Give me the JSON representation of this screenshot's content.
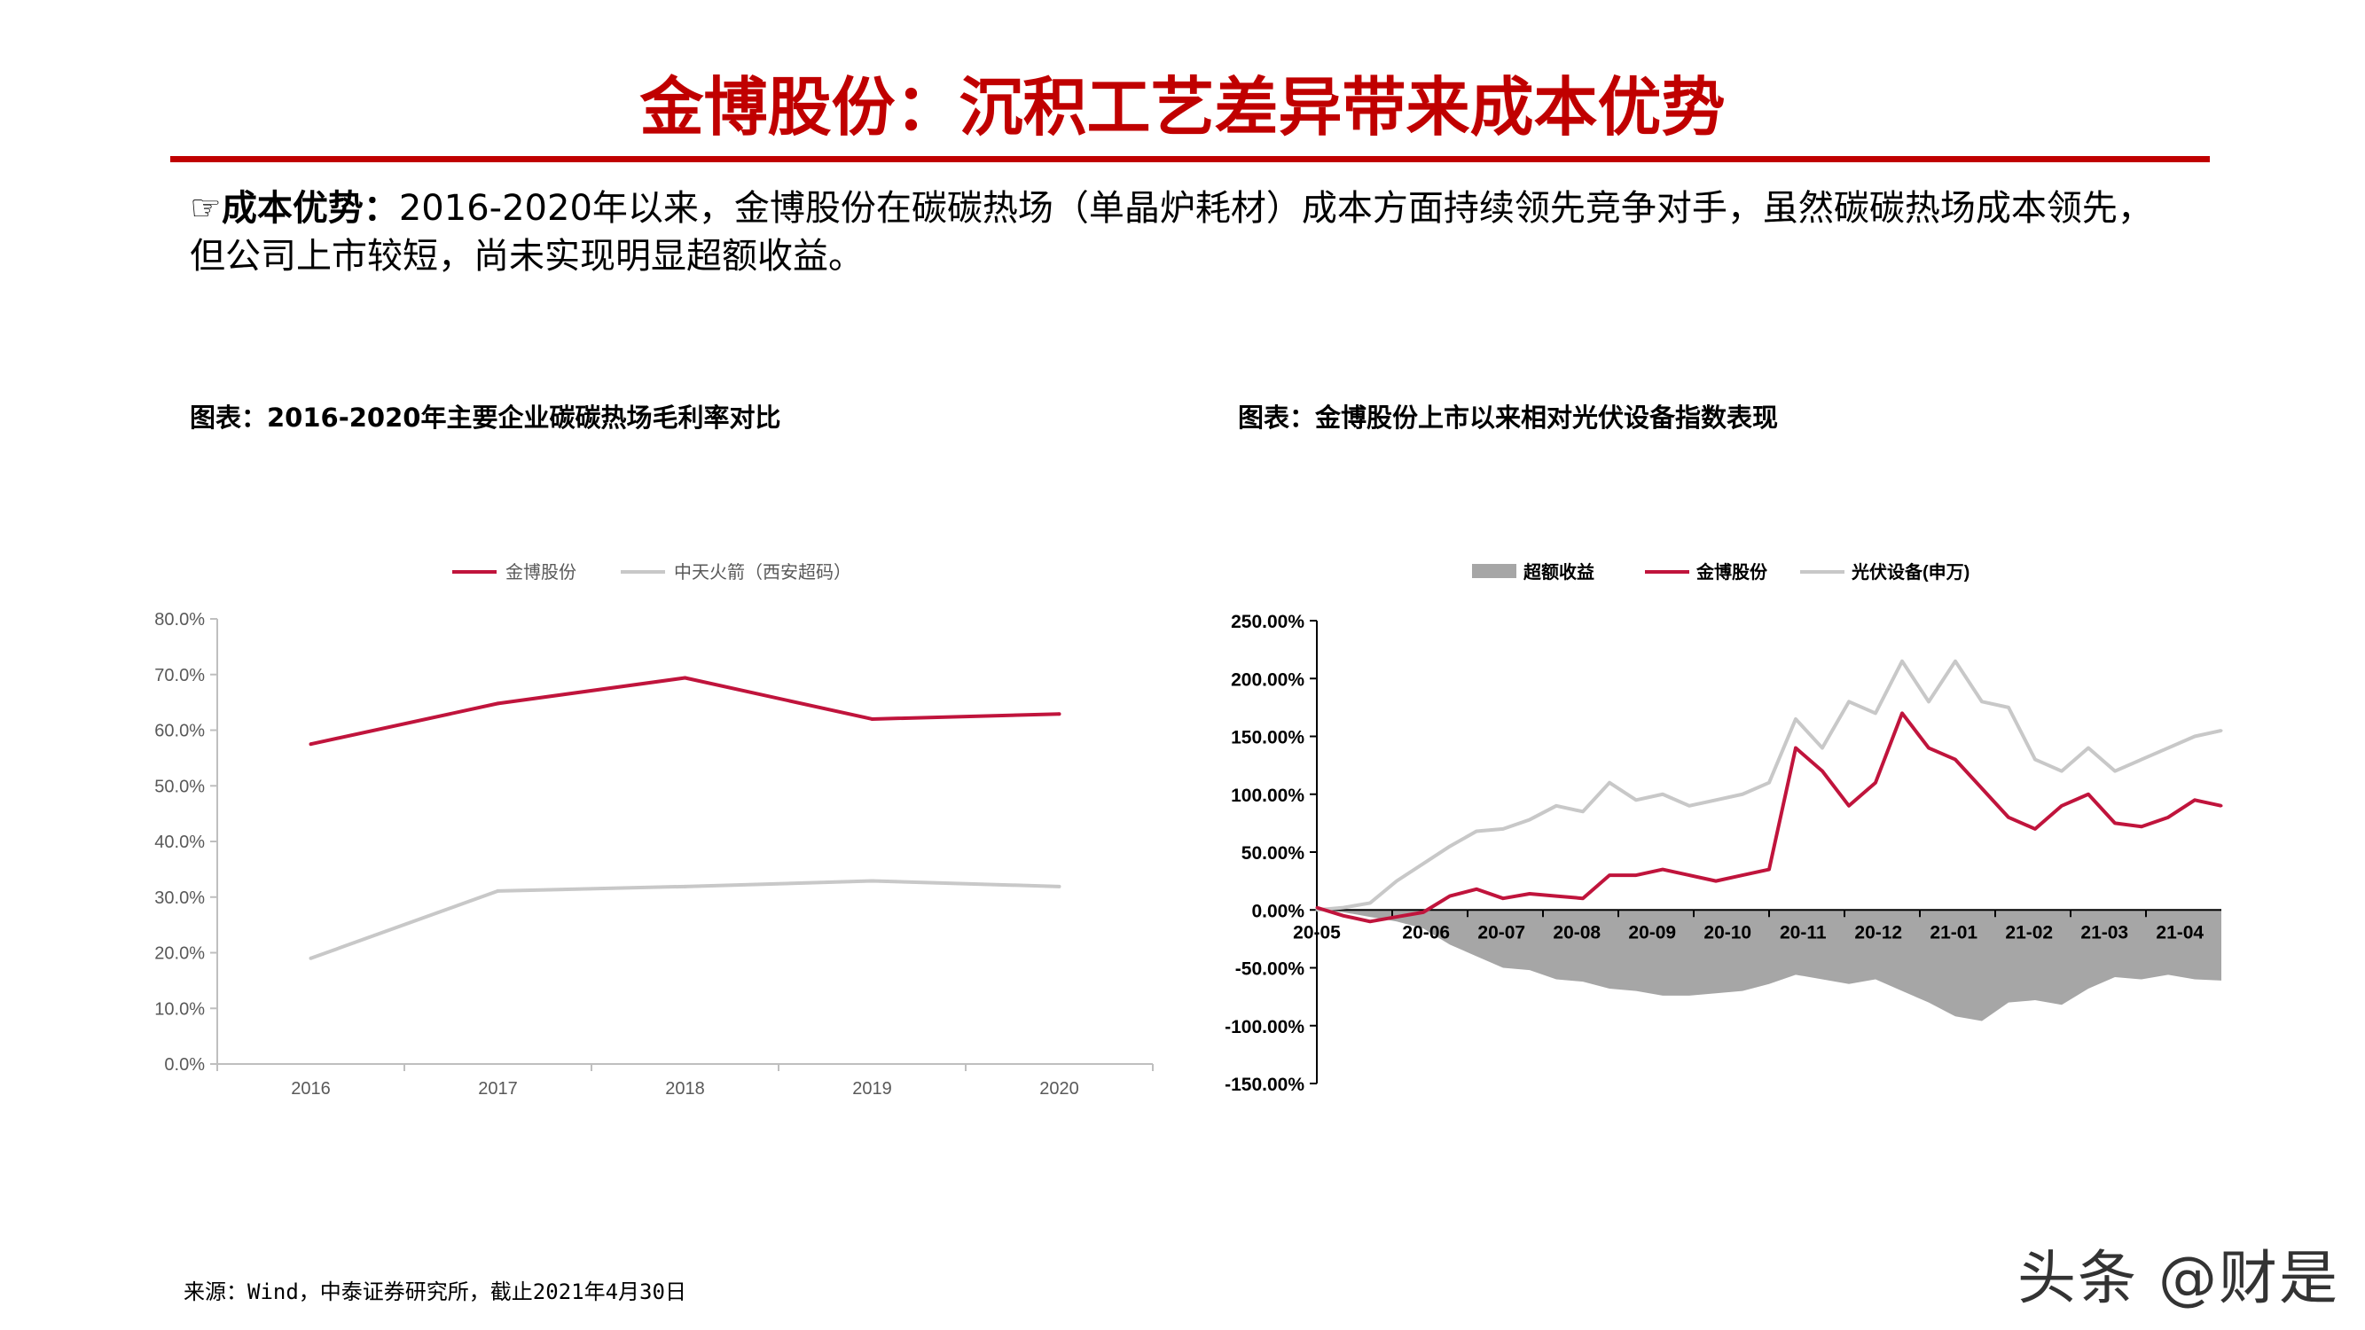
{
  "page": {
    "title": "金博股份：沉积工艺差异带来成本优势",
    "intro_icon": "☞",
    "intro_lead": "成本优势：",
    "intro_text": "2016-2020年以来，金博股份在碳碳热场（单晶炉耗材）成本方面持续领先竞争对手，虽然碳碳热场成本领先，但公司上市较短，尚未实现明显超额收益。",
    "source": "来源：Wind，中泰证券研究所，截止2021年4月30日",
    "watermark": "头条 @财是",
    "accent_color": "#c00000"
  },
  "chart_data": [
    {
      "type": "line",
      "title": "图表：2016-2020年主要企业碳碳热场毛利率对比",
      "categories": [
        "2016",
        "2017",
        "2018",
        "2019",
        "2020"
      ],
      "ylim": [
        0,
        0.8
      ],
      "yticks": [
        "0.0%",
        "10.0%",
        "20.0%",
        "30.0%",
        "40.0%",
        "50.0%",
        "60.0%",
        "70.0%",
        "80.0%"
      ],
      "legend_position": "top",
      "grid": false,
      "series": [
        {
          "name": "金博股份",
          "color": "#c0143c",
          "values": [
            0.575,
            0.648,
            0.694,
            0.62,
            0.629
          ]
        },
        {
          "name": "中天火箭（西安超码）",
          "color": "#c8c8c8",
          "values": [
            0.19,
            0.311,
            0.319,
            0.329,
            0.319
          ]
        }
      ]
    },
    {
      "type": "line",
      "title": "图表：金博股份上市以来相对光伏设备指数表现",
      "x_ticks": [
        "20-05",
        "20-06",
        "20-07",
        "20-08",
        "20-09",
        "20-10",
        "20-11",
        "20-12",
        "21-01",
        "21-02",
        "21-03",
        "21-04"
      ],
      "ylim": [
        -1.5,
        2.5
      ],
      "yticks": [
        "-150.00%",
        "-100.00%",
        "-50.00%",
        "0.00%",
        "50.00%",
        "100.00%",
        "150.00%",
        "200.00%",
        "250.00%"
      ],
      "legend_position": "top",
      "grid": false,
      "series": [
        {
          "name": "超额收益",
          "type": "area",
          "color": "#a6a6a6",
          "values": [
            0.0,
            -0.02,
            -0.06,
            -0.1,
            -0.16,
            -0.3,
            -0.4,
            -0.5,
            -0.52,
            -0.6,
            -0.62,
            -0.68,
            -0.7,
            -0.74,
            -0.74,
            -0.72,
            -0.7,
            -0.64,
            -0.56,
            -0.6,
            -0.64,
            -0.6,
            -0.7,
            -0.8,
            -0.92,
            -0.96,
            -0.8,
            -0.78,
            -0.82,
            -0.68,
            -0.58,
            -0.6,
            -0.56,
            -0.6,
            -0.61
          ]
        },
        {
          "name": "金博股份",
          "color": "#c0143c",
          "values": [
            0.02,
            -0.05,
            -0.1,
            -0.06,
            -0.02,
            0.12,
            0.18,
            0.1,
            0.14,
            0.12,
            0.1,
            0.3,
            0.3,
            0.35,
            0.3,
            0.25,
            0.3,
            0.35,
            1.4,
            1.2,
            0.9,
            1.1,
            1.7,
            1.4,
            1.3,
            1.05,
            0.8,
            0.7,
            0.9,
            1.0,
            0.75,
            0.72,
            0.8,
            0.95,
            0.9
          ]
        },
        {
          "name": "光伏设备(申万)",
          "color": "#c8c8c8",
          "values": [
            0.0,
            0.02,
            0.06,
            0.25,
            0.4,
            0.55,
            0.68,
            0.7,
            0.78,
            0.9,
            0.85,
            1.1,
            0.95,
            1.0,
            0.9,
            0.95,
            1.0,
            1.1,
            1.65,
            1.4,
            1.8,
            1.7,
            2.15,
            1.8,
            2.15,
            1.8,
            1.75,
            1.3,
            1.2,
            1.4,
            1.2,
            1.3,
            1.4,
            1.5,
            1.55
          ]
        }
      ]
    }
  ]
}
